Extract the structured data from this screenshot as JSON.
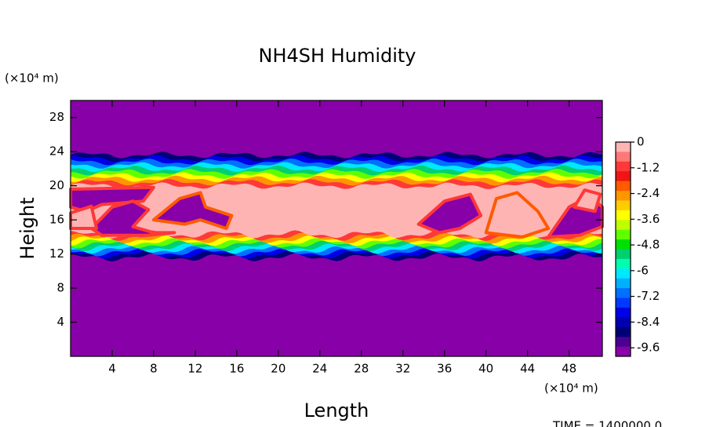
{
  "chart_data": {
    "type": "contour",
    "title": "NH4SH Humidity",
    "xlabel": "Length",
    "ylabel": "Height",
    "xunit": "(×10⁴ m)",
    "yunit": "(×10⁴ m)",
    "footer": "TIME = 1400000.0",
    "xlim": [
      0,
      51.2
    ],
    "ylim": [
      0,
      30
    ],
    "xticks": [
      4,
      8,
      12,
      16,
      20,
      24,
      28,
      32,
      36,
      40,
      44,
      48
    ],
    "yticks": [
      4,
      8,
      12,
      16,
      20,
      24,
      28
    ],
    "clim": [
      -10,
      0
    ],
    "cticks": [
      0,
      -1.2,
      -2.4,
      -3.6,
      -4.8,
      -6,
      -7.2,
      -8.4,
      -9.6
    ],
    "colors": [
      "#ffb4b4",
      "#ff7878",
      "#ff3838",
      "#f01414",
      "#ff5a00",
      "#ff9600",
      "#ffcc00",
      "#ffff00",
      "#c0ff00",
      "#60ff00",
      "#00e000",
      "#00d070",
      "#00ffb0",
      "#00e8ff",
      "#00b0ff",
      "#0070ff",
      "#0038ff",
      "#0000e8",
      "#0000b0",
      "#000078",
      "#4a0090",
      "#8800a8"
    ]
  }
}
